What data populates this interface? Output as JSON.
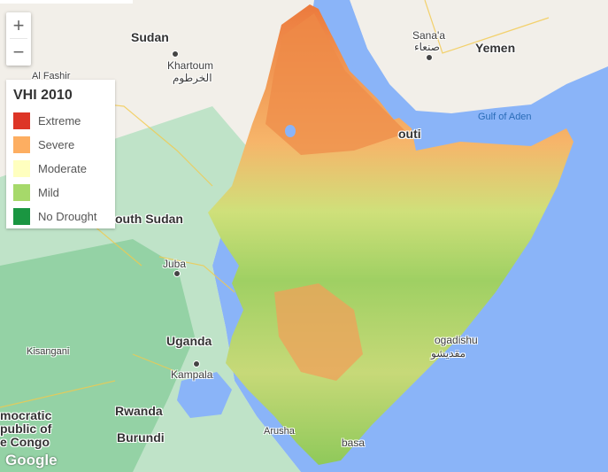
{
  "map": {
    "zoom_in_label": "+",
    "zoom_out_label": "−",
    "attribution": "Google"
  },
  "legend": {
    "title": "VHI 2010",
    "items": [
      {
        "label": "Extreme",
        "color": "#dd3526"
      },
      {
        "label": "Severe",
        "color": "#fdae61"
      },
      {
        "label": "Moderate",
        "color": "#ffffbf"
      },
      {
        "label": "Mild",
        "color": "#a6d96a"
      },
      {
        "label": "No Drought",
        "color": "#1a9641"
      }
    ]
  },
  "places": {
    "sudan": "Sudan",
    "yemen": "Yemen",
    "sanaa": "Sana'a",
    "sanaa_ar": "صنعاء",
    "khartoum": "Khartoum",
    "khartoum_ar": "الخرطوم",
    "al_fashir": "Al Fashir",
    "gulf_of_aden": "Gulf of Aden",
    "djibouti_partial": "outi",
    "south_sudan_partial": "outh Sudan",
    "juba": "Juba",
    "uganda": "Uganda",
    "kampala": "Kampala",
    "kisangani": "Kisangani",
    "rwanda": "Rwanda",
    "burundi": "Burundi",
    "arusha": "Arusha",
    "mombasa_partial": "basa",
    "mogadishu_partial": "ogadishu",
    "mogadishu_ar": "مقديشو",
    "drc_line1": "mocratic",
    "drc_line2": "public of",
    "drc_line3": "e Congo"
  },
  "colors": {
    "sea": "#8ab4f8",
    "land": "#f2efe9",
    "green_land": "#bfe3c8",
    "forest": "#94d2a5"
  }
}
